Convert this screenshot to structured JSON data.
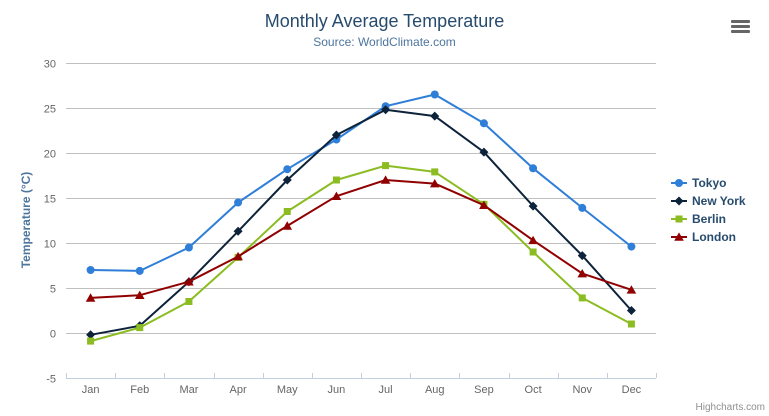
{
  "chart": {
    "credits": "Highcharts.com",
    "export_button": "chart context menu"
  },
  "chart_data": {
    "type": "line",
    "title": "Monthly Average Temperature",
    "subtitle": "Source: WorldClimate.com",
    "categories": [
      "Jan",
      "Feb",
      "Mar",
      "Apr",
      "May",
      "Jun",
      "Jul",
      "Aug",
      "Sep",
      "Oct",
      "Nov",
      "Dec"
    ],
    "xlabel": "",
    "ylabel": "Temperature (°C)",
    "ylim": [
      -5,
      30
    ],
    "ytick_interval": 5,
    "grid": true,
    "legend_position": "right",
    "series": [
      {
        "name": "Tokyo",
        "color": "#2f7ed8",
        "marker": "circle",
        "values": [
          7.0,
          6.9,
          9.5,
          14.5,
          18.2,
          21.5,
          25.2,
          26.5,
          23.3,
          18.3,
          13.9,
          9.6
        ]
      },
      {
        "name": "New York",
        "color": "#0d233a",
        "marker": "diamond",
        "values": [
          -0.2,
          0.8,
          5.7,
          11.3,
          17.0,
          22.0,
          24.8,
          24.1,
          20.1,
          14.1,
          8.6,
          2.5
        ]
      },
      {
        "name": "Berlin",
        "color": "#8bbc21",
        "marker": "square",
        "values": [
          -0.9,
          0.6,
          3.5,
          8.4,
          13.5,
          17.0,
          18.6,
          17.9,
          14.3,
          9.0,
          3.9,
          1.0
        ]
      },
      {
        "name": "London",
        "color": "#910000",
        "marker": "triangle",
        "values": [
          3.9,
          4.2,
          5.7,
          8.5,
          11.9,
          15.2,
          17.0,
          16.6,
          14.2,
          10.3,
          6.6,
          4.8
        ]
      }
    ],
    "axis_colors": {
      "grid": "#c0c0c0",
      "axis_line": "#c0d0e0",
      "tick_label": "#666666"
    }
  }
}
